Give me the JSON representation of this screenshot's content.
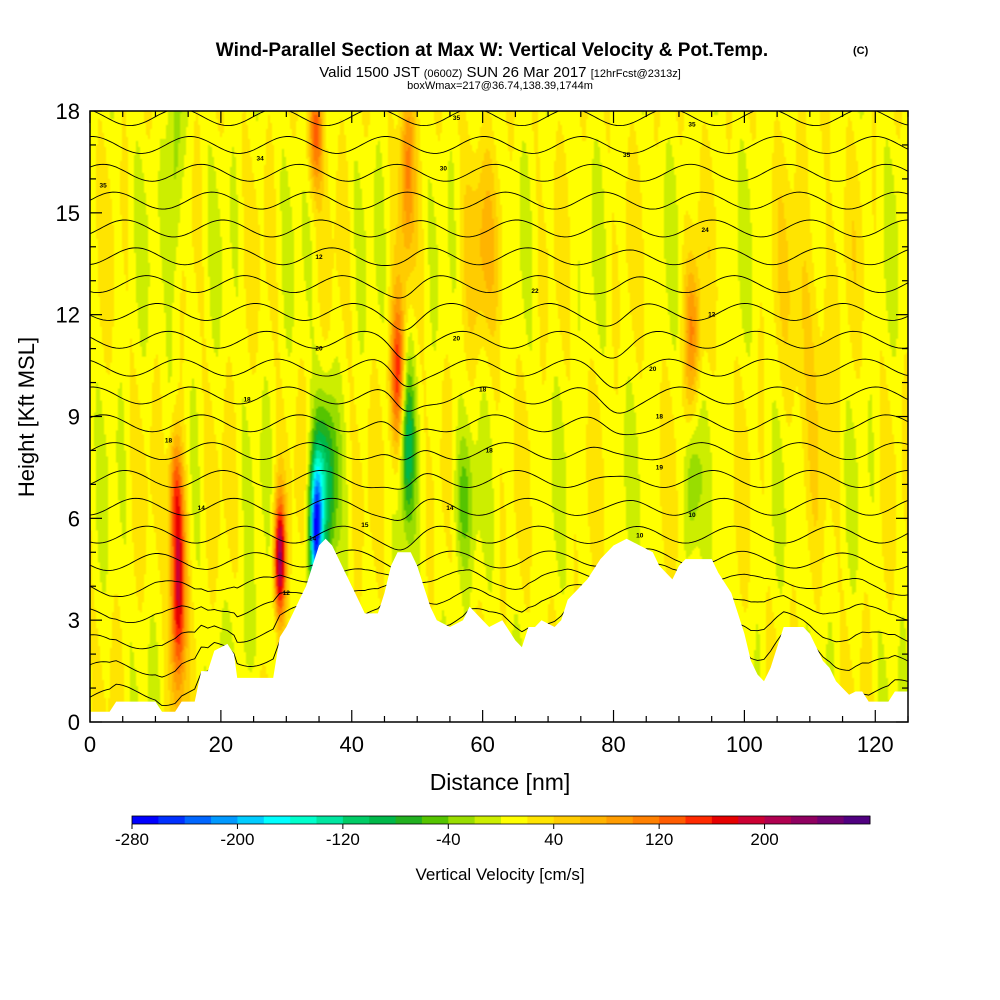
{
  "chart_data": {
    "type": "heatmap",
    "title": "Wind-Parallel Section at Max W: Vertical Velocity & Pot.Temp.",
    "title_mark": "(C)",
    "subtitle_valid": "Valid 1500 JST",
    "subtitle_utc": "(0600Z)",
    "subtitle_date": "SUN 26 Mar 2017",
    "subtitle_fcst": "[12hrFcst@2313z]",
    "subtitle_box": "boxWmax=217@36.74,138.39,1744m",
    "xlabel": "Distance [nm]",
    "ylabel": "Height [Kft MSL]",
    "xlim": [
      0,
      125
    ],
    "ylim": [
      0,
      18
    ],
    "x_ticks": [
      0,
      20,
      40,
      60,
      80,
      100,
      120
    ],
    "y_ticks": [
      0,
      3,
      6,
      9,
      12,
      15,
      18
    ],
    "colorbar": {
      "label": "Vertical Velocity [cm/s]",
      "tick_labels": [
        "-280",
        "-200",
        "-120",
        "-40",
        "40",
        "120",
        "200"
      ],
      "tick_values": [
        -280,
        -200,
        -120,
        -40,
        40,
        120,
        200
      ],
      "colors": [
        "#0000ff",
        "#0030ff",
        "#0066ff",
        "#0099ff",
        "#00ccff",
        "#00ffff",
        "#00ffcc",
        "#00e6a0",
        "#00cc66",
        "#00b84a",
        "#22b020",
        "#55c400",
        "#99dd00",
        "#ccee00",
        "#ffff00",
        "#ffe400",
        "#ffcc00",
        "#ffb400",
        "#ff9c00",
        "#ff8000",
        "#ff5c00",
        "#ff2a00",
        "#e60000",
        "#cc0033",
        "#b00050",
        "#900060",
        "#700070",
        "#500080"
      ]
    },
    "terrain_kft": [
      [
        0,
        0.3
      ],
      [
        3,
        0.3
      ],
      [
        4,
        0.6
      ],
      [
        10,
        0.6
      ],
      [
        11,
        0.3
      ],
      [
        13,
        0.3
      ],
      [
        14,
        0.6
      ],
      [
        16,
        0.6
      ],
      [
        17,
        1.5
      ],
      [
        18,
        1.5
      ],
      [
        19,
        2.1
      ],
      [
        21,
        2.3
      ],
      [
        22,
        2.0
      ],
      [
        22.5,
        1.3
      ],
      [
        28,
        1.3
      ],
      [
        29,
        2.5
      ],
      [
        30,
        2.8
      ],
      [
        31,
        3.2
      ],
      [
        32,
        3.6
      ],
      [
        33,
        4.0
      ],
      [
        34,
        4.6
      ],
      [
        35,
        5.2
      ],
      [
        36,
        5.4
      ],
      [
        37,
        5.2
      ],
      [
        38,
        4.8
      ],
      [
        39,
        4.4
      ],
      [
        40,
        4.0
      ],
      [
        41,
        3.6
      ],
      [
        42,
        3.2
      ],
      [
        44,
        3.2
      ],
      [
        45,
        3.8
      ],
      [
        46,
        4.6
      ],
      [
        47,
        5.0
      ],
      [
        49,
        5.0
      ],
      [
        50,
        4.6
      ],
      [
        51,
        4.0
      ],
      [
        52,
        3.4
      ],
      [
        53,
        3.0
      ],
      [
        55,
        2.8
      ],
      [
        57,
        3.0
      ],
      [
        58,
        3.4
      ],
      [
        60,
        3.0
      ],
      [
        61,
        2.8
      ],
      [
        63,
        3.0
      ],
      [
        65,
        2.4
      ],
      [
        66,
        2.2
      ],
      [
        67,
        2.8
      ],
      [
        68,
        2.8
      ],
      [
        69,
        3.0
      ],
      [
        71,
        2.8
      ],
      [
        72,
        3.0
      ],
      [
        73,
        3.6
      ],
      [
        76,
        4.2
      ],
      [
        78,
        4.8
      ],
      [
        80,
        5.2
      ],
      [
        82,
        5.4
      ],
      [
        84,
        5.2
      ],
      [
        86,
        5.0
      ],
      [
        87,
        4.6
      ],
      [
        88,
        4.4
      ],
      [
        89,
        4.2
      ],
      [
        90,
        4.6
      ],
      [
        91,
        4.8
      ],
      [
        95,
        4.8
      ],
      [
        96,
        4.4
      ],
      [
        98,
        3.8
      ],
      [
        99,
        3.2
      ],
      [
        100,
        2.6
      ],
      [
        101,
        1.8
      ],
      [
        102,
        1.4
      ],
      [
        103,
        1.2
      ],
      [
        104,
        1.6
      ],
      [
        105,
        2.2
      ],
      [
        106,
        2.8
      ],
      [
        109,
        2.8
      ],
      [
        110,
        2.6
      ],
      [
        111,
        2.2
      ],
      [
        112,
        1.8
      ],
      [
        113,
        1.6
      ],
      [
        114,
        1.2
      ],
      [
        115,
        1.0
      ],
      [
        116,
        0.8
      ],
      [
        117,
        0.9
      ],
      [
        118,
        0.9
      ],
      [
        119,
        0.6
      ],
      [
        122,
        0.6
      ],
      [
        123,
        0.9
      ],
      [
        125,
        0.9
      ]
    ],
    "velocity_features": [
      {
        "x": 13.5,
        "y": 4.2,
        "sx": 0.8,
        "sy": 2.2,
        "w": 190
      },
      {
        "x": 13.0,
        "y": 7.0,
        "sx": 0.7,
        "sy": 1.2,
        "w": 80
      },
      {
        "x": 29.0,
        "y": 4.8,
        "sx": 0.6,
        "sy": 1.3,
        "w": 210
      },
      {
        "x": 34.5,
        "y": 5.6,
        "sx": 0.7,
        "sy": 1.5,
        "w": -240
      },
      {
        "x": 36.0,
        "y": 7.0,
        "sx": 1.2,
        "sy": 1.8,
        "w": -110
      },
      {
        "x": 47.0,
        "y": 10.2,
        "sx": 0.8,
        "sy": 1.6,
        "w": 140
      },
      {
        "x": 48.5,
        "y": 8.3,
        "sx": 0.8,
        "sy": 1.8,
        "w": -100
      },
      {
        "x": 34.5,
        "y": 17.4,
        "sx": 0.8,
        "sy": 1.2,
        "w": 110
      },
      {
        "x": 48.5,
        "y": 16.5,
        "sx": 0.8,
        "sy": 2.0,
        "w": 90
      },
      {
        "x": 13.0,
        "y": 16.0,
        "sx": 0.8,
        "sy": 3.0,
        "w": -50
      },
      {
        "x": 57.0,
        "y": 6.5,
        "sx": 1.2,
        "sy": 1.5,
        "w": -55
      },
      {
        "x": 92.0,
        "y": 7.0,
        "sx": 0.8,
        "sy": 1.3,
        "w": -50
      },
      {
        "x": 92.0,
        "y": 11.5,
        "sx": 0.9,
        "sy": 1.5,
        "w": 85
      },
      {
        "x": 60.0,
        "y": 14.0,
        "sx": 2.5,
        "sy": 2.0,
        "w": 40
      },
      {
        "x": 110.0,
        "y": 12.0,
        "sx": 3.0,
        "sy": 3.0,
        "w": 30
      },
      {
        "x": 25.0,
        "y": 2.5,
        "sx": 2.5,
        "sy": 1.2,
        "w": -20
      }
    ],
    "contour_labels": [
      {
        "text": "35",
        "x": 2,
        "y": 15.8
      },
      {
        "text": "34",
        "x": 26,
        "y": 16.6
      },
      {
        "text": "35",
        "x": 56,
        "y": 17.8
      },
      {
        "text": "30",
        "x": 54,
        "y": 16.3
      },
      {
        "text": "35",
        "x": 82,
        "y": 16.7
      },
      {
        "text": "35",
        "x": 92,
        "y": 17.6
      },
      {
        "text": "24",
        "x": 94,
        "y": 14.5
      },
      {
        "text": "12",
        "x": 35,
        "y": 13.7
      },
      {
        "text": "22",
        "x": 68,
        "y": 12.7
      },
      {
        "text": "12",
        "x": 95,
        "y": 12.0
      },
      {
        "text": "20",
        "x": 35,
        "y": 11.0
      },
      {
        "text": "20",
        "x": 56,
        "y": 11.3
      },
      {
        "text": "20",
        "x": 86,
        "y": 10.4
      },
      {
        "text": "18",
        "x": 24,
        "y": 9.5
      },
      {
        "text": "18",
        "x": 60,
        "y": 9.8
      },
      {
        "text": "18",
        "x": 87,
        "y": 9.0
      },
      {
        "text": "18",
        "x": 12,
        "y": 8.3
      },
      {
        "text": "18",
        "x": 61,
        "y": 8.0
      },
      {
        "text": "19",
        "x": 87,
        "y": 7.5
      },
      {
        "text": "14",
        "x": 17,
        "y": 6.3
      },
      {
        "text": "14",
        "x": 55,
        "y": 6.3
      },
      {
        "text": "10",
        "x": 84,
        "y": 5.5
      },
      {
        "text": "10",
        "x": 92,
        "y": 6.1
      },
      {
        "text": "15",
        "x": 42,
        "y": 5.8
      },
      {
        "text": "14",
        "x": 34,
        "y": 5.4
      },
      {
        "text": "12",
        "x": 30,
        "y": 3.8
      }
    ]
  }
}
